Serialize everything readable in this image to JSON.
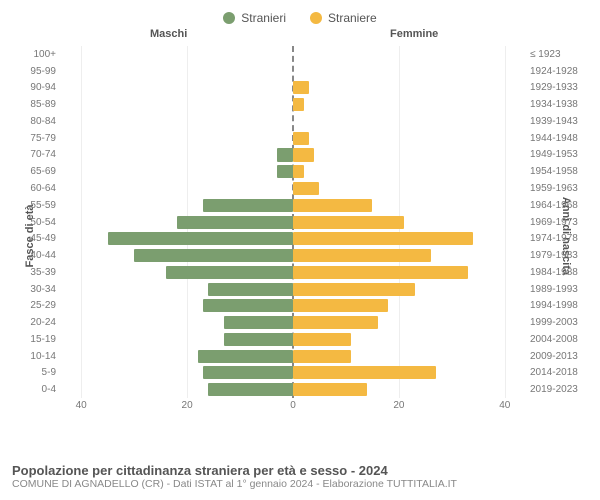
{
  "type": "population-pyramid",
  "legend": {
    "male": {
      "label": "Stranieri",
      "color": "#7b9e6f"
    },
    "female": {
      "label": "Straniere",
      "color": "#f4b942"
    }
  },
  "col_headers": {
    "left": "Maschi",
    "right": "Femmine"
  },
  "axis_left_label": "Fasce di età",
  "axis_right_label": "Anni di nascita",
  "rows": [
    {
      "age": "100+",
      "birth": "≤ 1923",
      "m": 0,
      "f": 0
    },
    {
      "age": "95-99",
      "birth": "1924-1928",
      "m": 0,
      "f": 0
    },
    {
      "age": "90-94",
      "birth": "1929-1933",
      "m": 0,
      "f": 3
    },
    {
      "age": "85-89",
      "birth": "1934-1938",
      "m": 0,
      "f": 2
    },
    {
      "age": "80-84",
      "birth": "1939-1943",
      "m": 0,
      "f": 0
    },
    {
      "age": "75-79",
      "birth": "1944-1948",
      "m": 0,
      "f": 3
    },
    {
      "age": "70-74",
      "birth": "1949-1953",
      "m": 3,
      "f": 4
    },
    {
      "age": "65-69",
      "birth": "1954-1958",
      "m": 3,
      "f": 2
    },
    {
      "age": "60-64",
      "birth": "1959-1963",
      "m": 0,
      "f": 5
    },
    {
      "age": "55-59",
      "birth": "1964-1968",
      "m": 17,
      "f": 15
    },
    {
      "age": "50-54",
      "birth": "1969-1973",
      "m": 22,
      "f": 21
    },
    {
      "age": "45-49",
      "birth": "1974-1978",
      "m": 35,
      "f": 34
    },
    {
      "age": "40-44",
      "birth": "1979-1983",
      "m": 30,
      "f": 26
    },
    {
      "age": "35-39",
      "birth": "1984-1988",
      "m": 24,
      "f": 33
    },
    {
      "age": "30-34",
      "birth": "1989-1993",
      "m": 16,
      "f": 23
    },
    {
      "age": "25-29",
      "birth": "1994-1998",
      "m": 17,
      "f": 18
    },
    {
      "age": "20-24",
      "birth": "1999-2003",
      "m": 13,
      "f": 16
    },
    {
      "age": "15-19",
      "birth": "2004-2008",
      "m": 13,
      "f": 11
    },
    {
      "age": "10-14",
      "birth": "2009-2013",
      "m": 18,
      "f": 11
    },
    {
      "age": "5-9",
      "birth": "2014-2018",
      "m": 17,
      "f": 27
    },
    {
      "age": "0-4",
      "birth": "2019-2023",
      "m": 16,
      "f": 14
    }
  ],
  "x_ticks": [
    40,
    20,
    0,
    20,
    40
  ],
  "x_max": 44,
  "colors": {
    "bg": "#ffffff",
    "male": "#7b9e6f",
    "female": "#f4b942",
    "grid": "#eeeeee",
    "center_line": "#888888",
    "tick_text": "#777777",
    "header_text": "#555555"
  },
  "title": "Popolazione per cittadinanza straniera per età e sesso - 2024",
  "subtitle": "COMUNE DI AGNADELLO (CR) - Dati ISTAT al 1° gennaio 2024 - Elaborazione TUTTITALIA.IT"
}
